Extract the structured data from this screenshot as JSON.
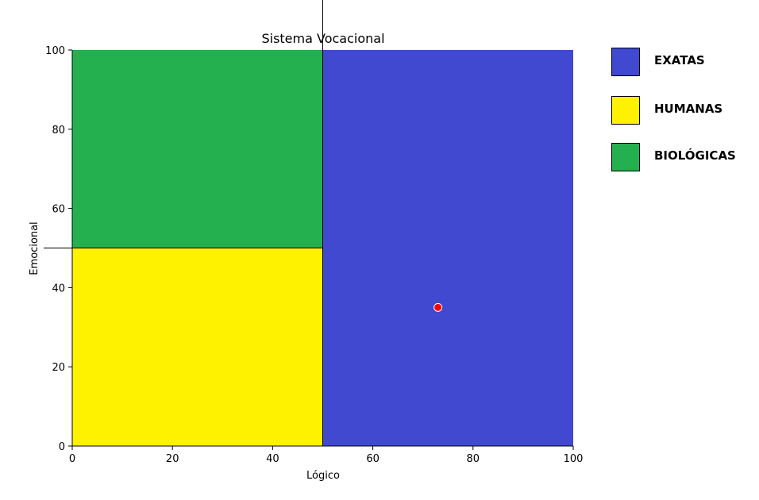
{
  "chart_data": {
    "type": "scatter",
    "title": "Sistema Vocacional",
    "xlabel": "Lógico",
    "ylabel": "Emocional",
    "xlim": [
      0,
      100
    ],
    "ylim": [
      0,
      100
    ],
    "x_ticks": [
      "0",
      "20",
      "40",
      "60",
      "80",
      "100"
    ],
    "y_ticks": [
      "0",
      "20",
      "40",
      "60",
      "80",
      "100"
    ],
    "grid": false,
    "regions": [
      {
        "label": "EXATAS",
        "x": [
          50,
          100
        ],
        "y": [
          0,
          100
        ],
        "color": "#4049cf"
      },
      {
        "label": "HUMANAS",
        "x": [
          0,
          50
        ],
        "y": [
          0,
          50
        ],
        "color": "#fff200"
      },
      {
        "label": "BIOLÓGICAS",
        "x": [
          0,
          50
        ],
        "y": [
          50,
          100
        ],
        "color": "#24b04f"
      }
    ],
    "points": [
      {
        "x": 73,
        "y": 35,
        "color": "#ff0000"
      }
    ],
    "legend": {
      "placement": "right",
      "items": [
        {
          "label": "EXATAS",
          "color": "#4049cf"
        },
        {
          "label": "HUMANAS",
          "color": "#fff200"
        },
        {
          "label": "BIOLÓGICAS",
          "color": "#24b04f"
        }
      ]
    }
  }
}
